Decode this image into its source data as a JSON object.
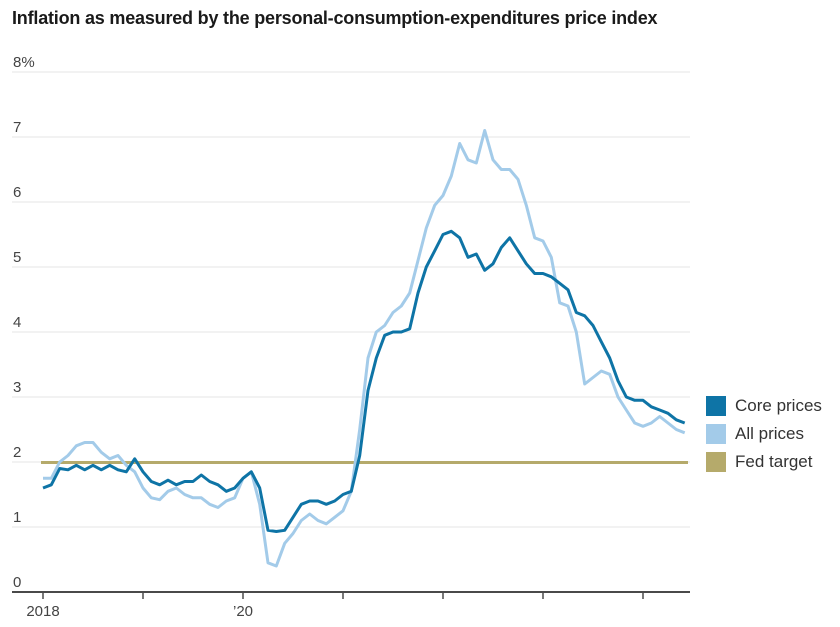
{
  "title": "Inflation as measured by the personal-consumption-expenditures price index",
  "chart_data": {
    "type": "line",
    "x_range": [
      "2018-01",
      "2024-06"
    ],
    "x_frequency": "monthly",
    "ylim": [
      0,
      8
    ],
    "grid": true,
    "legend_position": "right",
    "yticks": [
      {
        "value": 8,
        "label": "8%"
      },
      {
        "value": 7,
        "label": "7"
      },
      {
        "value": 6,
        "label": "6"
      },
      {
        "value": 5,
        "label": "5"
      },
      {
        "value": 4,
        "label": "4"
      },
      {
        "value": 3,
        "label": "3"
      },
      {
        "value": 2,
        "label": "2"
      },
      {
        "value": 1,
        "label": "1"
      },
      {
        "value": 0,
        "label": "0"
      }
    ],
    "xticks": [
      {
        "month": 0,
        "label": "2018"
      },
      {
        "month": 12,
        "label": ""
      },
      {
        "month": 24,
        "label": "’20"
      },
      {
        "month": 36,
        "label": ""
      },
      {
        "month": 48,
        "label": ""
      },
      {
        "month": 60,
        "label": ""
      },
      {
        "month": 72,
        "label": ""
      }
    ],
    "grid_color": "#e4e4e4",
    "axis_color": "#4a4a4a",
    "tick_text_color": "#444444",
    "series": [
      {
        "name": "Core prices",
        "color": "#0e74a6",
        "values": [
          1.6,
          1.65,
          1.9,
          1.88,
          1.95,
          1.88,
          1.95,
          1.88,
          1.95,
          1.88,
          1.85,
          2.05,
          1.85,
          1.7,
          1.65,
          1.72,
          1.65,
          1.7,
          1.7,
          1.8,
          1.7,
          1.65,
          1.55,
          1.6,
          1.75,
          1.85,
          1.6,
          0.95,
          0.93,
          0.95,
          1.15,
          1.35,
          1.4,
          1.4,
          1.35,
          1.4,
          1.5,
          1.55,
          2.1,
          3.1,
          3.6,
          3.95,
          4.0,
          4.0,
          4.05,
          4.6,
          5.0,
          5.25,
          5.5,
          5.55,
          5.45,
          5.15,
          5.2,
          4.95,
          5.05,
          5.3,
          5.45,
          5.25,
          5.05,
          4.9,
          4.9,
          4.85,
          4.75,
          4.65,
          4.3,
          4.25,
          4.1,
          3.85,
          3.6,
          3.25,
          3.0,
          2.95,
          2.95,
          2.85,
          2.8,
          2.75,
          2.65,
          2.6
        ]
      },
      {
        "name": "All prices",
        "color": "#a3cbe9",
        "values": [
          1.75,
          1.75,
          2.0,
          2.1,
          2.25,
          2.3,
          2.3,
          2.15,
          2.05,
          2.1,
          1.95,
          1.85,
          1.6,
          1.45,
          1.42,
          1.55,
          1.6,
          1.5,
          1.45,
          1.45,
          1.35,
          1.3,
          1.4,
          1.45,
          1.75,
          1.85,
          1.35,
          0.45,
          0.4,
          0.75,
          0.9,
          1.1,
          1.2,
          1.1,
          1.05,
          1.15,
          1.25,
          1.55,
          2.5,
          3.6,
          4.0,
          4.1,
          4.3,
          4.4,
          4.6,
          5.1,
          5.6,
          5.95,
          6.1,
          6.4,
          6.9,
          6.65,
          6.6,
          7.1,
          6.65,
          6.5,
          6.5,
          6.35,
          5.95,
          5.45,
          5.4,
          5.15,
          4.45,
          4.4,
          4.0,
          3.2,
          3.3,
          3.4,
          3.35,
          3.0,
          2.8,
          2.6,
          2.55,
          2.6,
          2.7,
          2.6,
          2.5,
          2.45
        ]
      },
      {
        "name": "Fed target",
        "color": "#b5aa6b",
        "type": "constant",
        "value": 2.0
      }
    ]
  },
  "legend": {
    "items": [
      "Core prices",
      "All prices",
      "Fed target"
    ]
  }
}
